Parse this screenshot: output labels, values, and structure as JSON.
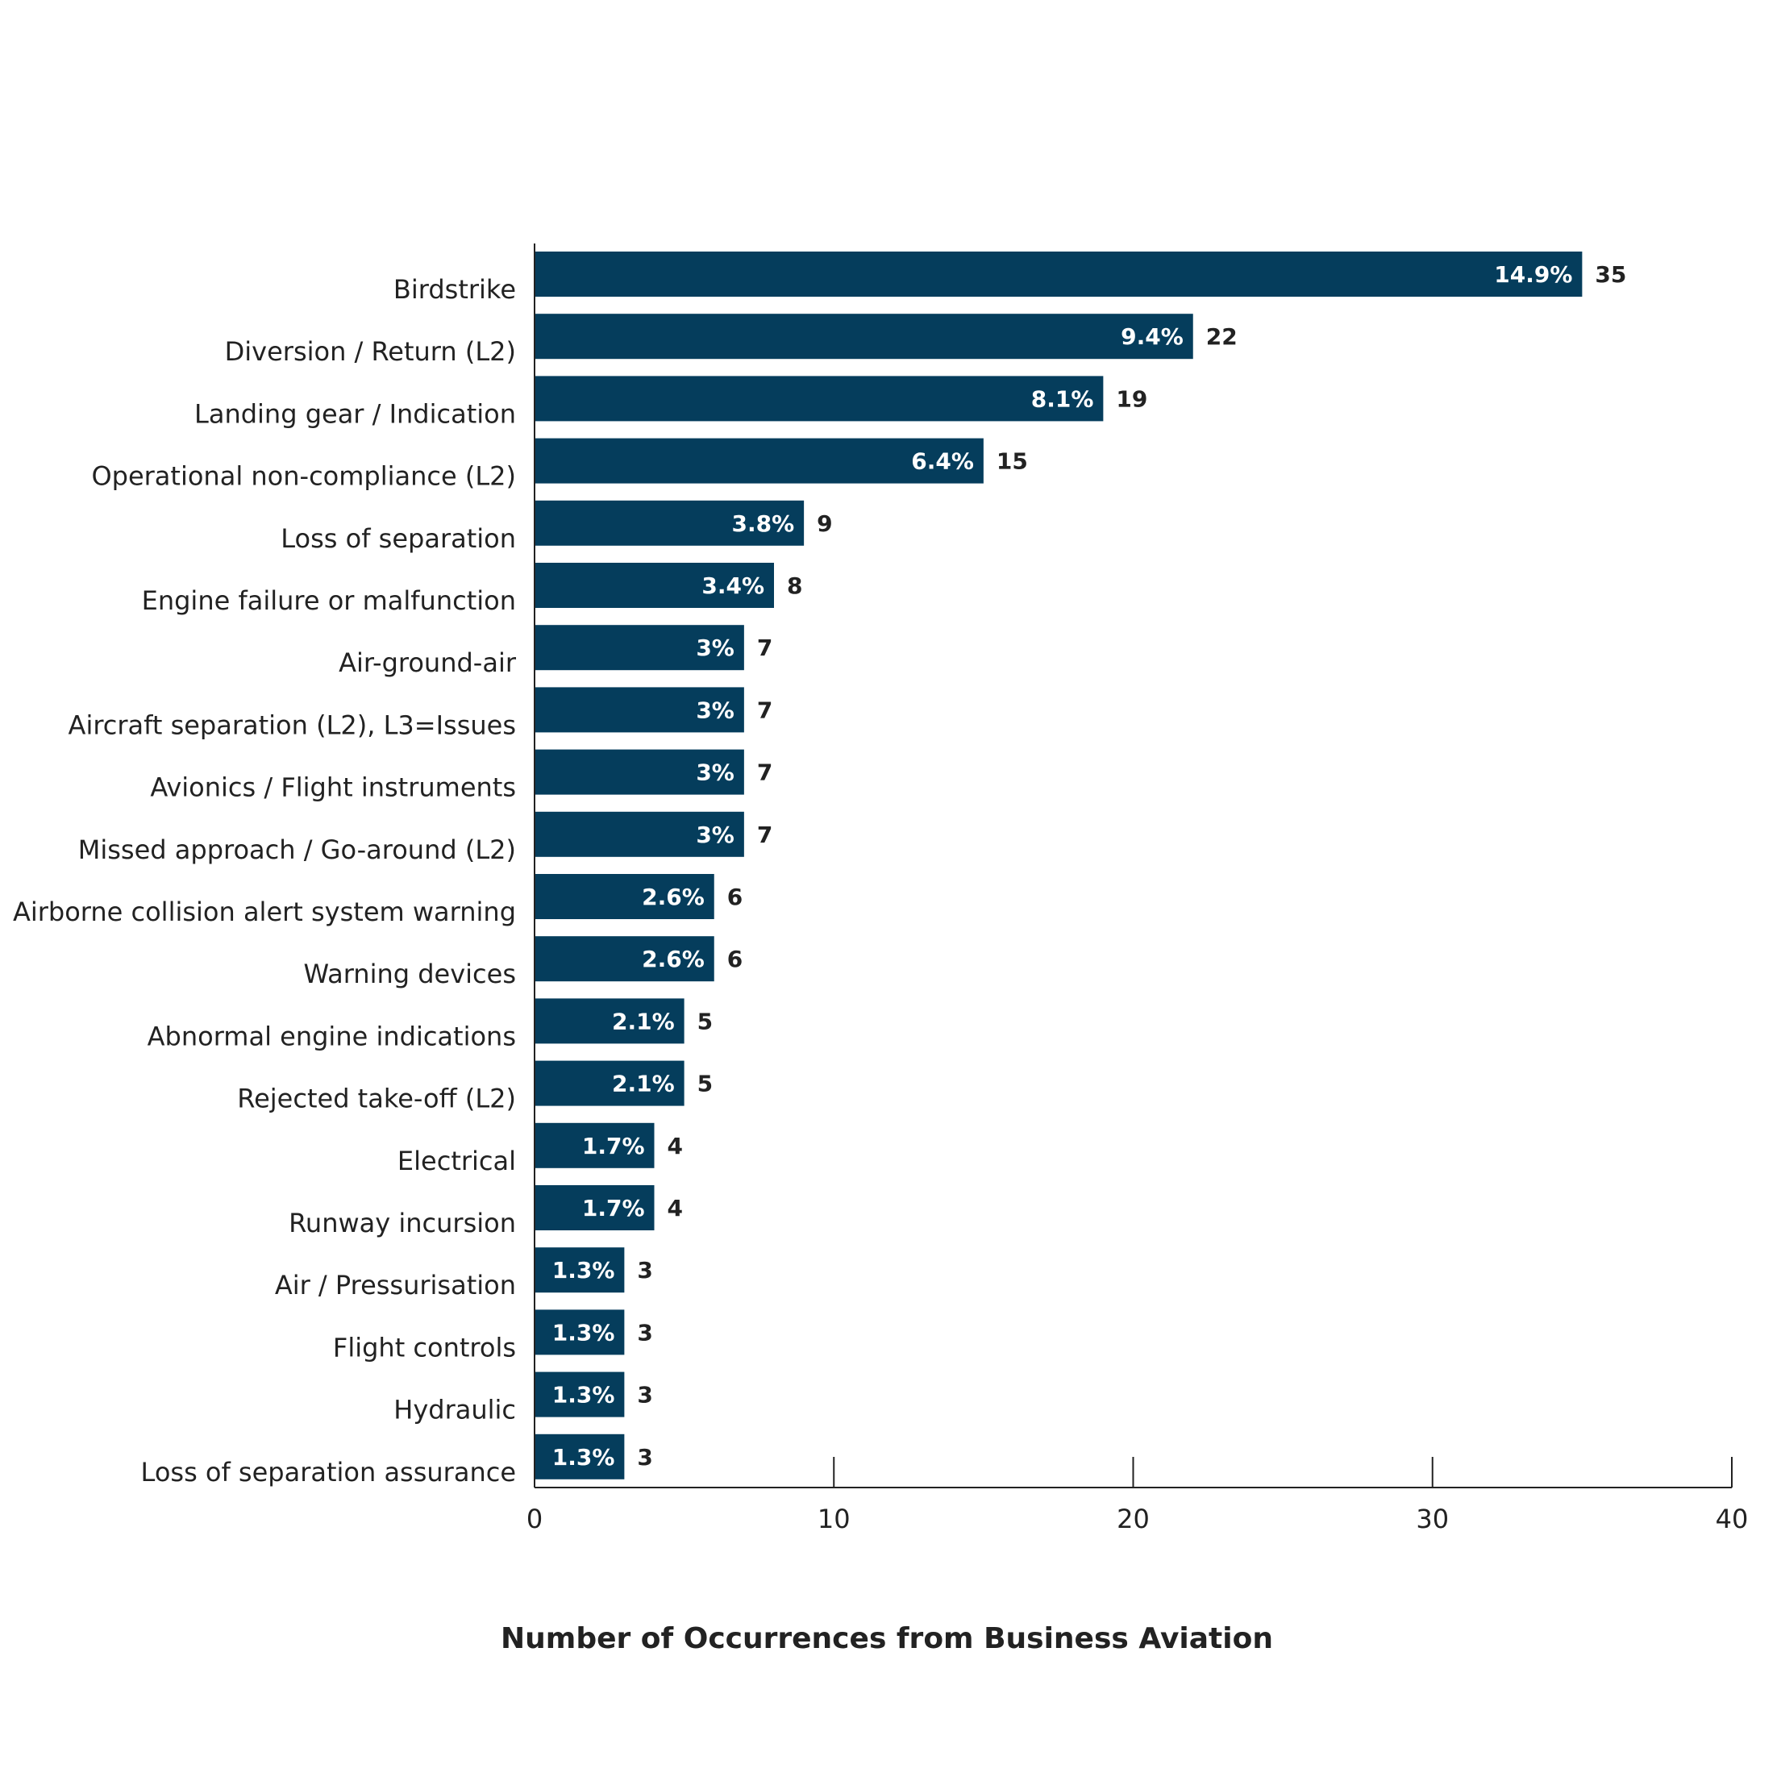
{
  "chart_data": {
    "type": "bar",
    "orientation": "horizontal",
    "categories": [
      "Birdstrike",
      "Diversion / Return (L2)",
      "Landing gear / Indication",
      "Operational non-compliance (L2)",
      "Loss of separation",
      "Engine failure or malfunction",
      "Air-ground-air",
      "Aircraft separation (L2), L3=Issues",
      "Avionics / Flight instruments",
      "Missed approach / Go-around (L2)",
      "Airborne collision alert system warning",
      "Warning devices",
      "Abnormal engine indications",
      "Rejected take-off (L2)",
      "Electrical",
      "Runway incursion",
      "Air / Pressurisation",
      "Flight controls",
      "Hydraulic",
      "Loss of separation assurance"
    ],
    "values": [
      35,
      22,
      19,
      15,
      9,
      8,
      7,
      7,
      7,
      7,
      6,
      6,
      5,
      5,
      4,
      4,
      3,
      3,
      3,
      3
    ],
    "percent_labels": [
      "14.9%",
      "9.4%",
      "8.1%",
      "6.4%",
      "3.8%",
      "3.4%",
      "3%",
      "3%",
      "3%",
      "3%",
      "2.6%",
      "2.6%",
      "2.1%",
      "2.1%",
      "1.7%",
      "1.7%",
      "1.3%",
      "1.3%",
      "1.3%",
      "1.3%"
    ],
    "value_labels": [
      "35",
      "22",
      "19",
      "15",
      "9",
      "8",
      "7",
      "7",
      "7",
      "7",
      "6",
      "6",
      "5",
      "5",
      "4",
      "4",
      "3",
      "3",
      "3",
      "3"
    ],
    "xticks": [
      "0",
      "10",
      "20",
      "30",
      "40"
    ],
    "xlim": [
      0,
      40
    ],
    "xlabel": "Number of Occurrences from Business Aviation",
    "title": "",
    "ylabel": "",
    "grid": false,
    "legend": "none",
    "bar_color": "#053d5c"
  }
}
